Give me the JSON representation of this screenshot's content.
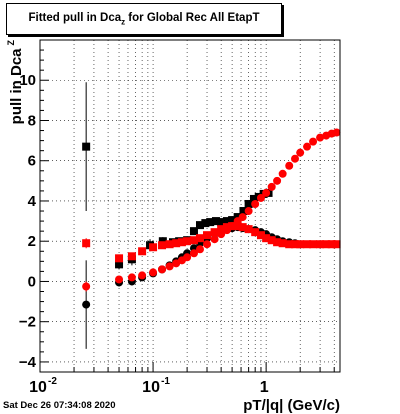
{
  "chart_data": {
    "type": "scatter",
    "title": "Fitted pull in Dca",
    "title_subscript": "z",
    "title_suffix": " for Global Rec All EtapT",
    "xlabel": "pT/|q| (GeV/c)",
    "ylabel": "pull in Dca",
    "ylabel_subscript": "Z",
    "xscale": "log",
    "xlim": [
      0.01,
      4.5
    ],
    "ylim": [
      -4.5,
      12.0
    ],
    "grid": true,
    "x_ticks": [
      0.01,
      0.1,
      1
    ],
    "x_tick_labels": [
      "10",
      "10",
      "1"
    ],
    "x_tick_exponents": [
      "-2",
      "-1",
      ""
    ],
    "y_ticks": [
      -4,
      -2,
      0,
      2,
      4,
      6,
      8,
      10
    ],
    "y_tick_labels": [
      "−4",
      "−2",
      "0",
      "2",
      "4",
      "6",
      "8",
      "10"
    ],
    "series": [
      {
        "color": "#000000",
        "marker": "square",
        "x": [
          0.0256,
          0.05,
          0.065,
          0.094,
          0.122,
          0.15,
          0.17,
          0.2,
          0.23,
          0.26,
          0.29,
          0.32,
          0.36,
          0.4,
          0.45,
          0.5,
          0.56,
          0.63,
          0.7,
          0.78,
          0.86,
          0.95,
          1.05
        ],
        "y": [
          6.7,
          0.85,
          1.1,
          1.8,
          2.0,
          1.95,
          2.0,
          2.05,
          2.5,
          2.8,
          2.9,
          2.95,
          3.0,
          2.95,
          3.0,
          3.05,
          3.2,
          3.5,
          3.85,
          4.1,
          4.2,
          4.35,
          4.4
        ],
        "y_err": [
          3.2,
          0.25,
          0.3,
          0.3,
          0.2,
          0.15,
          0.15,
          0.15,
          0.15,
          0.12,
          0.12,
          0.12,
          0.12,
          0.12,
          0.12,
          0.12,
          0.12,
          0.12,
          0.12,
          0.12,
          0.12,
          0.12,
          0.12
        ]
      },
      {
        "color": "#000000",
        "marker": "circle",
        "x": [
          0.0256,
          0.05,
          0.065,
          0.08,
          0.1,
          0.12,
          0.14,
          0.16,
          0.18,
          0.2,
          0.23,
          0.26,
          0.3,
          0.35,
          0.4,
          0.45,
          0.5,
          0.56,
          0.62,
          0.7,
          0.8,
          0.9,
          1.0,
          1.12,
          1.25,
          1.4,
          1.6,
          1.8
        ],
        "y": [
          -1.15,
          -0.05,
          0.0,
          0.2,
          0.4,
          0.6,
          0.8,
          1.0,
          1.2,
          1.4,
          1.65,
          1.9,
          2.15,
          2.35,
          2.5,
          2.6,
          2.65,
          2.7,
          2.65,
          2.6,
          2.55,
          2.45,
          2.35,
          2.2,
          2.1,
          2.0,
          1.95,
          1.9
        ],
        "y_err": [
          2.2,
          0.2,
          0.2,
          0.15,
          0.12,
          0.1,
          0.1,
          0.1,
          0.1,
          0.1,
          0.1,
          0.1,
          0.1,
          0.1,
          0.1,
          0.1,
          0.1,
          0.1,
          0.1,
          0.1,
          0.1,
          0.1,
          0.1,
          0.1,
          0.1,
          0.1,
          0.1,
          0.1
        ]
      },
      {
        "color": "#ff0000",
        "marker": "square",
        "x": [
          0.0256,
          0.05,
          0.065,
          0.08,
          0.1,
          0.12,
          0.14,
          0.16,
          0.18,
          0.2,
          0.23,
          0.26,
          0.3,
          0.35,
          0.4,
          0.45,
          0.5,
          0.56,
          0.62,
          0.7,
          0.8,
          0.9,
          1.0,
          1.12,
          1.25,
          1.4,
          1.6,
          1.8,
          2.0,
          2.3,
          2.6,
          3.0,
          3.4,
          3.8,
          4.2
        ],
        "y": [
          1.9,
          1.15,
          1.25,
          1.5,
          1.7,
          1.8,
          1.85,
          1.9,
          1.95,
          2.0,
          2.05,
          2.15,
          2.3,
          2.45,
          2.6,
          2.7,
          2.75,
          2.75,
          2.7,
          2.6,
          2.45,
          2.3,
          2.15,
          2.05,
          1.95,
          1.9,
          1.85,
          1.85,
          1.85,
          1.85,
          1.85,
          1.85,
          1.85,
          1.85,
          1.85
        ],
        "y_err": [
          0.25,
          0.15,
          0.15,
          0.12,
          0.1,
          0.1,
          0.1,
          0.1,
          0.1,
          0.1,
          0.1,
          0.1,
          0.1,
          0.1,
          0.1,
          0.1,
          0.1,
          0.1,
          0.1,
          0.1,
          0.1,
          0.1,
          0.1,
          0.1,
          0.1,
          0.1,
          0.1,
          0.1,
          0.1,
          0.1,
          0.1,
          0.1,
          0.1,
          0.1,
          0.1
        ]
      },
      {
        "color": "#ff0000",
        "marker": "circle",
        "x": [
          0.0256,
          0.05,
          0.065,
          0.08,
          0.1,
          0.12,
          0.14,
          0.16,
          0.18,
          0.2,
          0.23,
          0.26,
          0.3,
          0.35,
          0.4,
          0.45,
          0.5,
          0.56,
          0.62,
          0.7,
          0.8,
          0.9,
          1.0,
          1.12,
          1.25,
          1.4,
          1.6,
          1.8,
          2.0,
          2.3,
          2.6,
          3.0,
          3.4,
          3.8,
          4.2
        ],
        "y": [
          -0.25,
          0.1,
          0.2,
          0.3,
          0.45,
          0.6,
          0.75,
          0.9,
          1.05,
          1.2,
          1.4,
          1.6,
          1.85,
          2.1,
          2.35,
          2.55,
          2.75,
          3.0,
          3.2,
          3.5,
          3.85,
          4.15,
          4.4,
          4.7,
          5.0,
          5.35,
          5.75,
          6.1,
          6.4,
          6.7,
          6.95,
          7.15,
          7.25,
          7.35,
          7.4
        ],
        "y_err": [
          0.25,
          0.15,
          0.15,
          0.12,
          0.1,
          0.1,
          0.1,
          0.1,
          0.1,
          0.1,
          0.1,
          0.1,
          0.1,
          0.1,
          0.1,
          0.1,
          0.1,
          0.1,
          0.1,
          0.1,
          0.1,
          0.1,
          0.1,
          0.1,
          0.1,
          0.1,
          0.1,
          0.1,
          0.1,
          0.1,
          0.1,
          0.1,
          0.1,
          0.1,
          0.1
        ]
      }
    ]
  },
  "footer": {
    "timestamp": "Sat Dec 26 07:34:08 2020"
  }
}
